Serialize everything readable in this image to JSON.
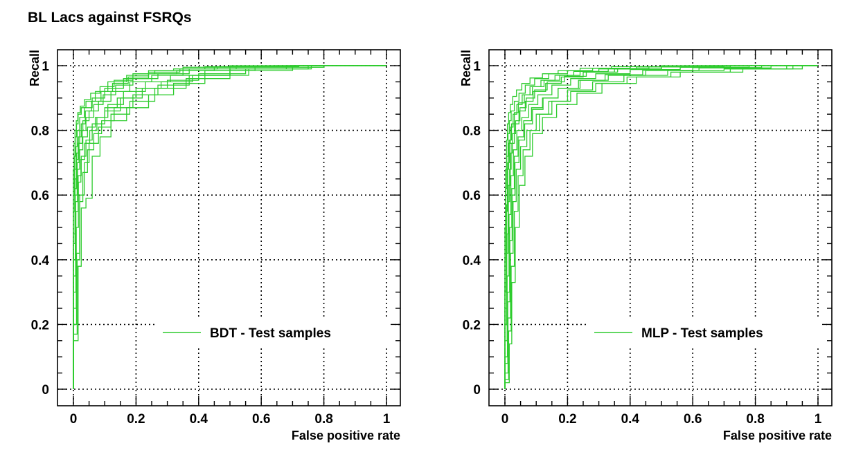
{
  "page_title": "BL Lacs against FSRQs",
  "curve_color": "#2ecc2e",
  "chart_data": [
    {
      "type": "line",
      "title": "",
      "xlabel": "False positive rate",
      "ylabel": "Recall",
      "xlim": [
        0,
        1
      ],
      "ylim": [
        0,
        1
      ],
      "xticks": [
        0,
        0.2,
        0.4,
        0.6,
        0.8,
        1
      ],
      "xtick_labels": [
        "0",
        "0.2",
        "0.4",
        "0.6",
        "0.8",
        "1"
      ],
      "yticks": [
        0,
        0.2,
        0.4,
        0.6,
        0.8,
        1
      ],
      "ytick_labels": [
        "0",
        "0.2",
        "0.4",
        "0.6",
        "0.8",
        "1"
      ],
      "grid": true,
      "legend": "BDT - Test samples",
      "legend_position": "lower-right",
      "series": [
        {
          "name": "BDT - Test samples",
          "x": [
            0,
            0.005,
            0.01,
            0.015,
            0.02,
            0.03,
            0.05,
            0.08,
            0.12,
            0.18,
            0.25,
            0.35,
            0.5,
            0.7,
            1.0
          ],
          "y": [
            0,
            0.45,
            0.62,
            0.71,
            0.76,
            0.8,
            0.83,
            0.86,
            0.89,
            0.92,
            0.95,
            0.97,
            0.985,
            0.995,
            1.0
          ]
        },
        {
          "name": "BDT - Test samples",
          "x": [
            0,
            0.008,
            0.015,
            0.025,
            0.04,
            0.06,
            0.1,
            0.15,
            0.22,
            0.3,
            0.4,
            0.55,
            0.75,
            1.0
          ],
          "y": [
            0,
            0.3,
            0.55,
            0.66,
            0.72,
            0.77,
            0.82,
            0.86,
            0.9,
            0.93,
            0.955,
            0.975,
            0.99,
            1.0
          ]
        },
        {
          "name": "BDT - Test samples",
          "x": [
            0,
            0.004,
            0.008,
            0.012,
            0.02,
            0.035,
            0.06,
            0.1,
            0.16,
            0.24,
            0.33,
            0.45,
            0.65,
            1.0
          ],
          "y": [
            0,
            0.55,
            0.68,
            0.75,
            0.8,
            0.84,
            0.87,
            0.9,
            0.93,
            0.96,
            0.975,
            0.985,
            0.995,
            1.0
          ]
        },
        {
          "name": "BDT - Test samples",
          "x": [
            0,
            0.01,
            0.02,
            0.035,
            0.05,
            0.08,
            0.12,
            0.18,
            0.26,
            0.36,
            0.5,
            0.7,
            1.0
          ],
          "y": [
            0,
            0.2,
            0.42,
            0.6,
            0.7,
            0.76,
            0.81,
            0.85,
            0.89,
            0.93,
            0.96,
            0.985,
            1.0
          ]
        },
        {
          "name": "BDT - Test samples",
          "x": [
            0,
            0.003,
            0.006,
            0.01,
            0.015,
            0.025,
            0.04,
            0.07,
            0.11,
            0.17,
            0.24,
            0.32,
            0.42,
            0.6,
            1.0
          ],
          "y": [
            0,
            0.6,
            0.72,
            0.78,
            0.82,
            0.85,
            0.87,
            0.89,
            0.92,
            0.95,
            0.97,
            0.985,
            0.99,
            0.997,
            1.0
          ]
        },
        {
          "name": "BDT - Test samples",
          "x": [
            0,
            0.007,
            0.013,
            0.02,
            0.03,
            0.045,
            0.07,
            0.1,
            0.14,
            0.2,
            0.28,
            0.38,
            0.5,
            0.68,
            1.0
          ],
          "y": [
            0,
            0.35,
            0.58,
            0.68,
            0.74,
            0.78,
            0.81,
            0.84,
            0.87,
            0.9,
            0.93,
            0.95,
            0.97,
            0.99,
            1.0
          ]
        },
        {
          "name": "BDT - Test samples",
          "x": [
            0,
            0.006,
            0.012,
            0.018,
            0.028,
            0.04,
            0.065,
            0.095,
            0.135,
            0.19,
            0.27,
            0.37,
            0.52,
            0.72,
            1.0
          ],
          "y": [
            0,
            0.4,
            0.6,
            0.7,
            0.76,
            0.8,
            0.84,
            0.88,
            0.91,
            0.94,
            0.96,
            0.975,
            0.99,
            0.997,
            1.0
          ]
        },
        {
          "name": "BDT - Test samples",
          "x": [
            0,
            0.012,
            0.02,
            0.03,
            0.045,
            0.065,
            0.09,
            0.13,
            0.19,
            0.27,
            0.37,
            0.5,
            0.7,
            1.0
          ],
          "y": [
            0,
            0.17,
            0.4,
            0.58,
            0.67,
            0.74,
            0.79,
            0.83,
            0.87,
            0.91,
            0.94,
            0.97,
            0.99,
            1.0
          ]
        },
        {
          "name": "BDT - Test samples",
          "x": [
            0,
            0.002,
            0.005,
            0.009,
            0.014,
            0.022,
            0.035,
            0.055,
            0.085,
            0.13,
            0.19,
            0.26,
            0.35,
            0.5,
            1.0
          ],
          "y": [
            0,
            0.68,
            0.76,
            0.8,
            0.83,
            0.855,
            0.875,
            0.895,
            0.915,
            0.935,
            0.955,
            0.975,
            0.985,
            0.995,
            1.0
          ]
        },
        {
          "name": "BDT - Test samples",
          "x": [
            0,
            0.009,
            0.016,
            0.024,
            0.036,
            0.052,
            0.075,
            0.11,
            0.16,
            0.23,
            0.31,
            0.42,
            0.58,
            0.8,
            1.0
          ],
          "y": [
            0,
            0.25,
            0.5,
            0.64,
            0.71,
            0.76,
            0.8,
            0.84,
            0.88,
            0.92,
            0.95,
            0.97,
            0.985,
            0.995,
            1.0
          ]
        },
        {
          "name": "BDT - Test samples",
          "x": [
            0,
            0.005,
            0.01,
            0.016,
            0.025,
            0.038,
            0.058,
            0.088,
            0.125,
            0.175,
            0.24,
            0.34,
            0.46,
            0.64,
            1.0
          ],
          "y": [
            0,
            0.48,
            0.65,
            0.73,
            0.78,
            0.82,
            0.86,
            0.89,
            0.92,
            0.945,
            0.965,
            0.98,
            0.99,
            0.997,
            1.0
          ]
        },
        {
          "name": "BDT - Test samples",
          "x": [
            0,
            0.015,
            0.025,
            0.04,
            0.06,
            0.085,
            0.12,
            0.17,
            0.24,
            0.32,
            0.42,
            0.56,
            0.76,
            1.0
          ],
          "y": [
            0,
            0.15,
            0.38,
            0.56,
            0.59,
            0.72,
            0.78,
            0.83,
            0.87,
            0.91,
            0.945,
            0.97,
            0.99,
            1.0
          ]
        }
      ]
    },
    {
      "type": "line",
      "title": "",
      "xlabel": "False positive rate",
      "ylabel": "Recall",
      "xlim": [
        0,
        1
      ],
      "ylim": [
        0,
        1
      ],
      "xticks": [
        0,
        0.2,
        0.4,
        0.6,
        0.8,
        1
      ],
      "xtick_labels": [
        "0",
        "0.2",
        "0.4",
        "0.6",
        "0.8",
        "1"
      ],
      "yticks": [
        0,
        0.2,
        0.4,
        0.6,
        0.8,
        1
      ],
      "ytick_labels": [
        "0",
        "0.2",
        "0.4",
        "0.6",
        "0.8",
        "1"
      ],
      "grid": true,
      "legend": "MLP - Test samples",
      "legend_position": "lower-right",
      "series": [
        {
          "name": "MLP - Test samples",
          "x": [
            0,
            0.005,
            0.01,
            0.015,
            0.02,
            0.03,
            0.045,
            0.065,
            0.09,
            0.13,
            0.18,
            0.25,
            0.35,
            0.5,
            0.7,
            1.0
          ],
          "y": [
            0,
            0.2,
            0.42,
            0.58,
            0.68,
            0.76,
            0.82,
            0.86,
            0.89,
            0.92,
            0.945,
            0.965,
            0.98,
            0.99,
            0.997,
            1.0
          ]
        },
        {
          "name": "MLP - Test samples",
          "x": [
            0,
            0.008,
            0.015,
            0.022,
            0.03,
            0.042,
            0.06,
            0.085,
            0.12,
            0.17,
            0.24,
            0.33,
            0.45,
            0.62,
            0.85,
            1.0
          ],
          "y": [
            0,
            0.1,
            0.3,
            0.5,
            0.62,
            0.72,
            0.78,
            0.83,
            0.87,
            0.9,
            0.93,
            0.955,
            0.97,
            0.985,
            0.993,
            1.0
          ]
        },
        {
          "name": "MLP - Test samples",
          "x": [
            0,
            0.004,
            0.008,
            0.012,
            0.018,
            0.026,
            0.038,
            0.055,
            0.08,
            0.115,
            0.16,
            0.22,
            0.3,
            0.42,
            0.6,
            1.0
          ],
          "y": [
            0,
            0.3,
            0.55,
            0.68,
            0.76,
            0.81,
            0.85,
            0.88,
            0.91,
            0.935,
            0.955,
            0.97,
            0.982,
            0.99,
            0.996,
            1.0
          ]
        },
        {
          "name": "MLP - Test samples",
          "x": [
            0,
            0.01,
            0.018,
            0.026,
            0.036,
            0.05,
            0.07,
            0.1,
            0.14,
            0.2,
            0.28,
            0.38,
            0.52,
            0.7,
            0.9,
            1.0
          ],
          "y": [
            0,
            0.05,
            0.22,
            0.42,
            0.58,
            0.68,
            0.75,
            0.8,
            0.85,
            0.89,
            0.925,
            0.95,
            0.97,
            0.985,
            0.99,
            1.0
          ]
        },
        {
          "name": "MLP - Test samples",
          "x": [
            0,
            0.003,
            0.006,
            0.01,
            0.014,
            0.02,
            0.03,
            0.045,
            0.065,
            0.095,
            0.14,
            0.2,
            0.28,
            0.4,
            0.58,
            1.0
          ],
          "y": [
            0,
            0.4,
            0.62,
            0.72,
            0.79,
            0.83,
            0.86,
            0.89,
            0.915,
            0.94,
            0.96,
            0.975,
            0.985,
            0.992,
            0.997,
            1.0
          ]
        },
        {
          "name": "MLP - Test samples",
          "x": [
            0,
            0.007,
            0.013,
            0.019,
            0.027,
            0.038,
            0.054,
            0.076,
            0.105,
            0.15,
            0.21,
            0.29,
            0.4,
            0.56,
            0.78,
            1.0
          ],
          "y": [
            0,
            0.15,
            0.35,
            0.54,
            0.66,
            0.74,
            0.8,
            0.84,
            0.88,
            0.91,
            0.94,
            0.96,
            0.975,
            0.988,
            0.995,
            1.0
          ]
        },
        {
          "name": "MLP - Test samples",
          "x": [
            0,
            0.006,
            0.011,
            0.017,
            0.024,
            0.034,
            0.048,
            0.068,
            0.095,
            0.135,
            0.19,
            0.26,
            0.36,
            0.5,
            0.72,
            1.0
          ],
          "y": [
            0,
            0.25,
            0.48,
            0.63,
            0.73,
            0.79,
            0.83,
            0.87,
            0.9,
            0.925,
            0.95,
            0.967,
            0.98,
            0.99,
            0.996,
            1.0
          ]
        },
        {
          "name": "MLP - Test samples",
          "x": [
            0,
            0.012,
            0.02,
            0.03,
            0.042,
            0.058,
            0.08,
            0.11,
            0.15,
            0.21,
            0.29,
            0.39,
            0.53,
            0.72,
            0.92,
            1.0
          ],
          "y": [
            0,
            0.03,
            0.18,
            0.38,
            0.55,
            0.66,
            0.74,
            0.8,
            0.85,
            0.89,
            0.92,
            0.945,
            0.965,
            0.98,
            0.99,
            1.0
          ]
        },
        {
          "name": "MLP - Test samples",
          "x": [
            0,
            0.002,
            0.005,
            0.008,
            0.012,
            0.017,
            0.025,
            0.037,
            0.054,
            0.08,
            0.12,
            0.17,
            0.24,
            0.34,
            0.5,
            1.0
          ],
          "y": [
            0,
            0.5,
            0.68,
            0.77,
            0.82,
            0.855,
            0.88,
            0.905,
            0.925,
            0.945,
            0.962,
            0.975,
            0.985,
            0.992,
            0.997,
            1.0
          ]
        },
        {
          "name": "MLP - Test samples",
          "x": [
            0,
            0.009,
            0.016,
            0.023,
            0.032,
            0.045,
            0.063,
            0.088,
            0.122,
            0.17,
            0.235,
            0.32,
            0.44,
            0.6,
            0.82,
            1.0
          ],
          "y": [
            0,
            0.08,
            0.27,
            0.46,
            0.6,
            0.7,
            0.77,
            0.82,
            0.865,
            0.9,
            0.93,
            0.955,
            0.972,
            0.986,
            0.994,
            1.0
          ]
        },
        {
          "name": "MLP - Test samples",
          "x": [
            0,
            0.005,
            0.009,
            0.014,
            0.021,
            0.03,
            0.043,
            0.062,
            0.088,
            0.125,
            0.175,
            0.24,
            0.33,
            0.46,
            0.66,
            1.0
          ],
          "y": [
            0,
            0.33,
            0.57,
            0.7,
            0.77,
            0.82,
            0.855,
            0.885,
            0.91,
            0.935,
            0.955,
            0.97,
            0.982,
            0.991,
            0.996,
            1.0
          ]
        },
        {
          "name": "MLP - Test samples",
          "x": [
            0,
            0.014,
            0.022,
            0.033,
            0.046,
            0.064,
            0.088,
            0.12,
            0.165,
            0.23,
            0.31,
            0.42,
            0.56,
            0.76,
            0.95,
            1.0
          ],
          "y": [
            0,
            0.02,
            0.14,
            0.33,
            0.5,
            0.63,
            0.72,
            0.79,
            0.84,
            0.88,
            0.915,
            0.945,
            0.965,
            0.98,
            0.99,
            1.0
          ]
        }
      ]
    }
  ]
}
